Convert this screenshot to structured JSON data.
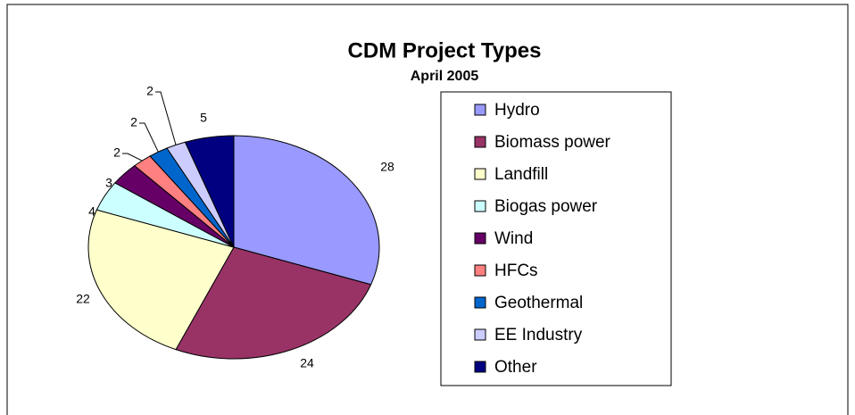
{
  "chart_data": {
    "type": "pie",
    "title": "CDM Project Types",
    "subtitle": "April 2005",
    "categories": [
      "Hydro",
      "Biomass power",
      "Landfill",
      "Biogas power",
      "Wind",
      "HFCs",
      "Geothermal",
      "EE Industry",
      "Other"
    ],
    "values": [
      28,
      24,
      22,
      4,
      3,
      2,
      2,
      2,
      5
    ],
    "colors": [
      "#9999ff",
      "#993366",
      "#ffffcc",
      "#ccffff",
      "#660066",
      "#ff8080",
      "#0066cc",
      "#ccccff",
      "#000080"
    ],
    "legend": "right"
  }
}
